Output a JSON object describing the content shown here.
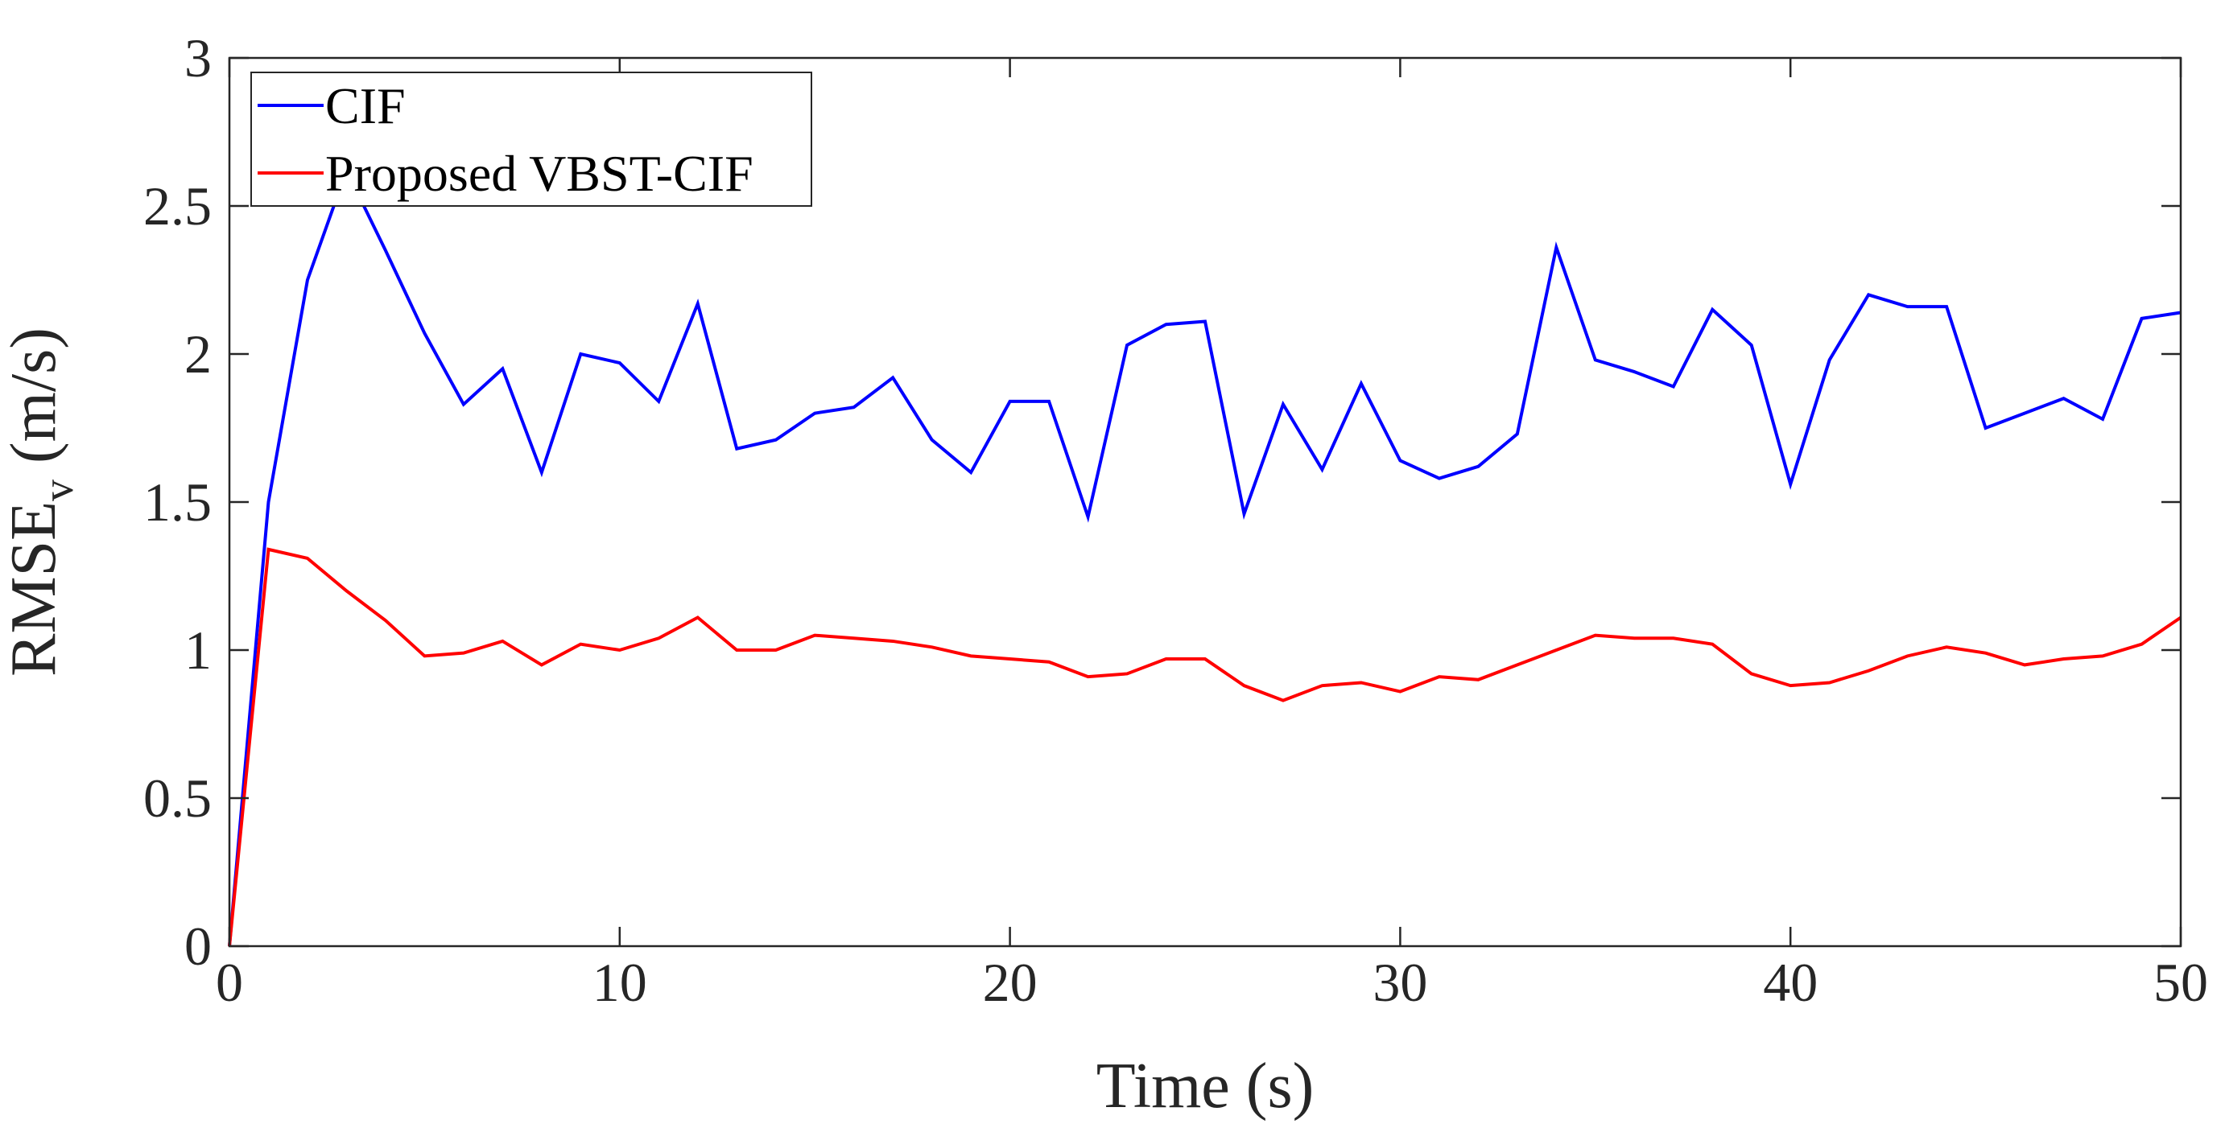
{
  "chart_data": {
    "type": "line",
    "title": "",
    "xlabel": "Time (s)",
    "ylabel_main": "RMSE",
    "ylabel_sub": "v",
    "ylabel_unit": " (m/s)",
    "xlim": [
      0,
      50
    ],
    "ylim": [
      0,
      3
    ],
    "xticks": [
      0,
      10,
      20,
      30,
      40,
      50
    ],
    "yticks": [
      0,
      0.5,
      1,
      1.5,
      2,
      2.5,
      3
    ],
    "xtick_labels": [
      "0",
      "10",
      "20",
      "30",
      "40",
      "50"
    ],
    "ytick_labels": [
      "0",
      "0.5",
      "1",
      "1.5",
      "2",
      "2.5",
      "3"
    ],
    "grid": false,
    "legend_position": "top-left",
    "x": [
      0,
      1,
      2,
      3,
      4,
      5,
      6,
      7,
      8,
      9,
      10,
      11,
      12,
      13,
      14,
      15,
      16,
      17,
      18,
      19,
      20,
      21,
      22,
      23,
      24,
      25,
      26,
      27,
      28,
      29,
      30,
      31,
      32,
      33,
      34,
      35,
      36,
      37,
      38,
      39,
      40,
      41,
      42,
      43,
      44,
      45,
      46,
      47,
      48,
      49,
      50
    ],
    "series": [
      {
        "name": "CIF",
        "color": "#0000ff",
        "values": [
          0,
          1.5,
          2.25,
          2.62,
          2.35,
          2.07,
          1.83,
          1.95,
          1.6,
          2.0,
          1.97,
          1.84,
          2.17,
          1.68,
          1.71,
          1.8,
          1.82,
          1.92,
          1.71,
          1.6,
          1.84,
          1.84,
          1.45,
          2.03,
          2.1,
          2.11,
          1.46,
          1.83,
          1.61,
          1.9,
          1.64,
          1.58,
          1.62,
          1.73,
          2.36,
          1.98,
          1.94,
          1.89,
          2.15,
          2.03,
          1.56,
          1.98,
          2.2,
          2.16,
          2.16,
          1.75,
          1.8,
          1.85,
          1.78,
          2.12,
          2.14
        ]
      },
      {
        "name": "Proposed VBST-CIF",
        "color": "#ff0000",
        "values": [
          0,
          1.34,
          1.31,
          1.2,
          1.1,
          0.98,
          0.99,
          1.03,
          0.95,
          1.02,
          1.0,
          1.04,
          1.11,
          1.0,
          1.0,
          1.05,
          1.04,
          1.03,
          1.01,
          0.98,
          0.97,
          0.96,
          0.91,
          0.92,
          0.97,
          0.97,
          0.88,
          0.83,
          0.88,
          0.89,
          0.86,
          0.91,
          0.9,
          0.95,
          1.0,
          1.05,
          1.04,
          1.04,
          1.02,
          0.92,
          0.88,
          0.89,
          0.93,
          0.98,
          1.01,
          0.99,
          0.95,
          0.97,
          0.98,
          1.02,
          1.11
        ]
      }
    ]
  }
}
